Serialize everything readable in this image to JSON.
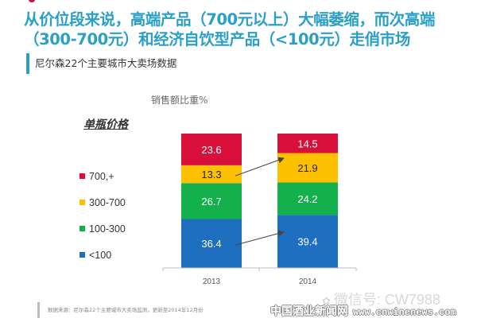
{
  "headline": "从价位段来说，高端产品（700元以上）大幅萎缩，而次高端（300-700元）和经济自饮型产品（<100元）走俏市场",
  "subheading": "尼尔森22个主要城市大卖场数据",
  "legend_title": "单瓶价格",
  "source_note": "数据来源：尼尔森22个主要城市大卖场监测，更新至2014年12月份",
  "watermark": {
    "wechat": "微信号: CW7988",
    "site_name": "中国酒业新闻网",
    "site_url": "www.cnwinenews.com"
  },
  "chart_data": {
    "type": "bar",
    "stacked": true,
    "title": "销售额比重%",
    "xlabel": "",
    "ylabel": "",
    "ylim": [
      0,
      100
    ],
    "grid": false,
    "legend_position": "left",
    "categories": [
      "2013",
      "2014"
    ],
    "series": [
      {
        "name": "<100",
        "color": "#1f6fc0",
        "label_color": "#ffffff",
        "values": [
          36.4,
          39.4
        ]
      },
      {
        "name": "100-300",
        "color": "#14b04c",
        "label_color": "#ffffff",
        "values": [
          26.7,
          24.2
        ]
      },
      {
        "name": "300-700",
        "color": "#fcc000",
        "label_color": "#222222",
        "values": [
          13.3,
          21.9
        ]
      },
      {
        "name": "700,+",
        "color": "#d8103a",
        "label_color": "#ffffff",
        "values": [
          23.6,
          14.5
        ]
      }
    ],
    "annotations": [
      {
        "type": "arrow",
        "series": "300-700",
        "from": "2013",
        "to": "2014"
      },
      {
        "type": "arrow",
        "series": "<100",
        "from": "2013",
        "to": "2014"
      }
    ]
  }
}
